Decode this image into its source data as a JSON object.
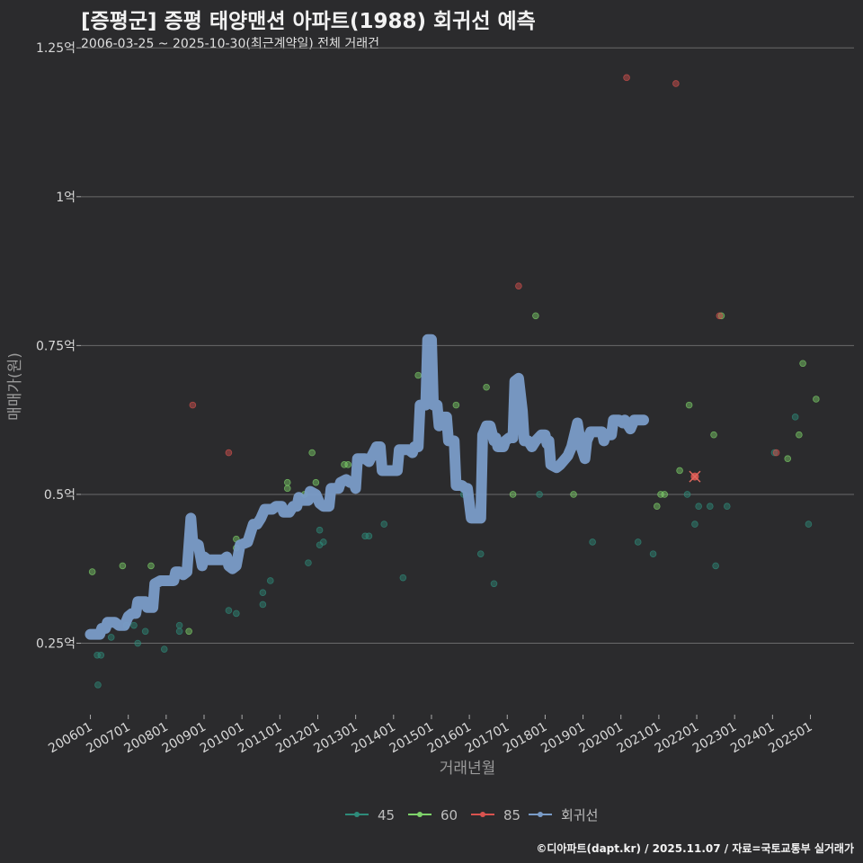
{
  "title": "[증평군] 증평 태양맨션 아파트(1988) 회귀선 예측",
  "subtitle": "2006-03-25 ~ 2025-10-30(최근계약일) 전체 거래건",
  "footer": "©디아파트(dapt.kr) / 2025.11.07 / 자료=국토교통부 실거래가",
  "chart_data": {
    "type": "scatter",
    "xlabel": "거래년월",
    "ylabel": "매매가(원)",
    "xlim": [
      2005.75,
      2026.15
    ],
    "ylim": [
      0.13,
      1.27
    ],
    "x_ticks": [
      {
        "value": 2006,
        "label": "200601"
      },
      {
        "value": 2007,
        "label": "200701"
      },
      {
        "value": 2008,
        "label": "200801"
      },
      {
        "value": 2009,
        "label": "200901"
      },
      {
        "value": 2010,
        "label": "201001"
      },
      {
        "value": 2011,
        "label": "201101"
      },
      {
        "value": 2012,
        "label": "201201"
      },
      {
        "value": 2013,
        "label": "201301"
      },
      {
        "value": 2014,
        "label": "201401"
      },
      {
        "value": 2015,
        "label": "201501"
      },
      {
        "value": 2016,
        "label": "201601"
      },
      {
        "value": 2017,
        "label": "201701"
      },
      {
        "value": 2018,
        "label": "201801"
      },
      {
        "value": 2019,
        "label": "201901"
      },
      {
        "value": 2020,
        "label": "202001"
      },
      {
        "value": 2021,
        "label": "202101"
      },
      {
        "value": 2022,
        "label": "202201"
      },
      {
        "value": 2023,
        "label": "202301"
      },
      {
        "value": 2024,
        "label": "202401"
      },
      {
        "value": 2025,
        "label": "202501"
      }
    ],
    "y_ticks": [
      {
        "value": 0.25,
        "label": "0.25억"
      },
      {
        "value": 0.5,
        "label": "0.5억"
      },
      {
        "value": 0.75,
        "label": "0.75억"
      },
      {
        "value": 1.0,
        "label": "1억"
      },
      {
        "value": 1.25,
        "label": "1.25억"
      }
    ],
    "legend": [
      {
        "name": "45",
        "color": "#2e8b7a"
      },
      {
        "name": "60",
        "color": "#7ed36a"
      },
      {
        "name": "85",
        "color": "#d9534f"
      },
      {
        "name": "회귀선",
        "color": "#7a9cc8"
      }
    ],
    "series": [
      {
        "name": "45",
        "color": "#2e8b7a",
        "points": [
          [
            2006.18,
            0.23
          ],
          [
            2006.28,
            0.23
          ],
          [
            2006.2,
            0.18
          ],
          [
            2006.55,
            0.26
          ],
          [
            2006.95,
            0.28
          ],
          [
            2007.15,
            0.28
          ],
          [
            2007.25,
            0.25
          ],
          [
            2007.45,
            0.27
          ],
          [
            2007.95,
            0.24
          ],
          [
            2008.35,
            0.27
          ],
          [
            2008.35,
            0.28
          ],
          [
            2009.65,
            0.305
          ],
          [
            2009.85,
            0.3
          ],
          [
            2010.55,
            0.315
          ],
          [
            2010.55,
            0.335
          ],
          [
            2010.75,
            0.355
          ],
          [
            2011.75,
            0.385
          ],
          [
            2012.05,
            0.415
          ],
          [
            2012.15,
            0.42
          ],
          [
            2012.05,
            0.44
          ],
          [
            2013.25,
            0.43
          ],
          [
            2013.35,
            0.43
          ],
          [
            2013.75,
            0.45
          ],
          [
            2014.25,
            0.36
          ],
          [
            2015.85,
            0.5
          ],
          [
            2016.3,
            0.4
          ],
          [
            2016.65,
            0.35
          ],
          [
            2017.85,
            0.5
          ],
          [
            2019.25,
            0.42
          ],
          [
            2020.45,
            0.42
          ],
          [
            2020.85,
            0.4
          ],
          [
            2021.75,
            0.5
          ],
          [
            2021.95,
            0.45
          ],
          [
            2022.05,
            0.48
          ],
          [
            2022.35,
            0.48
          ],
          [
            2022.5,
            0.38
          ],
          [
            2022.8,
            0.48
          ],
          [
            2024.95,
            0.45
          ],
          [
            2024.6,
            0.63
          ],
          [
            2024.05,
            0.57
          ]
        ]
      },
      {
        "name": "60",
        "color": "#7ed36a",
        "points": [
          [
            2006.05,
            0.37
          ],
          [
            2006.85,
            0.38
          ],
          [
            2007.6,
            0.38
          ],
          [
            2008.6,
            0.27
          ],
          [
            2009.85,
            0.41
          ],
          [
            2009.85,
            0.425
          ],
          [
            2011.2,
            0.51
          ],
          [
            2011.2,
            0.52
          ],
          [
            2011.65,
            0.5
          ],
          [
            2011.85,
            0.57
          ],
          [
            2011.95,
            0.52
          ],
          [
            2012.7,
            0.55
          ],
          [
            2012.8,
            0.55
          ],
          [
            2014.65,
            0.7
          ],
          [
            2015.65,
            0.65
          ],
          [
            2016.45,
            0.68
          ],
          [
            2017.15,
            0.5
          ],
          [
            2017.75,
            0.8
          ],
          [
            2018.75,
            0.5
          ],
          [
            2020.95,
            0.48
          ],
          [
            2021.05,
            0.5
          ],
          [
            2021.15,
            0.5
          ],
          [
            2021.55,
            0.54
          ],
          [
            2021.8,
            0.65
          ],
          [
            2022.45,
            0.6
          ],
          [
            2022.65,
            0.8
          ],
          [
            2024.4,
            0.56
          ],
          [
            2024.7,
            0.6
          ],
          [
            2024.8,
            0.72
          ],
          [
            2025.15,
            0.66
          ]
        ]
      },
      {
        "name": "85",
        "color": "#d9534f",
        "points": [
          [
            2008.7,
            0.65
          ],
          [
            2009.65,
            0.57
          ],
          [
            2017.3,
            0.85
          ],
          [
            2020.15,
            1.2
          ],
          [
            2021.45,
            1.19
          ],
          [
            2022.6,
            0.8
          ],
          [
            2021.95,
            0.53
          ],
          [
            2024.1,
            0.57
          ]
        ]
      }
    ],
    "regression": [
      [
        2006.0,
        0.265
      ],
      [
        2006.25,
        0.265
      ],
      [
        2006.3,
        0.275
      ],
      [
        2006.4,
        0.275
      ],
      [
        2006.45,
        0.285
      ],
      [
        2006.65,
        0.285
      ],
      [
        2006.75,
        0.28
      ],
      [
        2006.9,
        0.28
      ],
      [
        2007.0,
        0.295
      ],
      [
        2007.1,
        0.3
      ],
      [
        2007.2,
        0.3
      ],
      [
        2007.25,
        0.32
      ],
      [
        2007.45,
        0.32
      ],
      [
        2007.5,
        0.31
      ],
      [
        2007.65,
        0.31
      ],
      [
        2007.7,
        0.35
      ],
      [
        2007.85,
        0.355
      ],
      [
        2008.2,
        0.355
      ],
      [
        2008.25,
        0.37
      ],
      [
        2008.35,
        0.37
      ],
      [
        2008.45,
        0.365
      ],
      [
        2008.55,
        0.37
      ],
      [
        2008.65,
        0.46
      ],
      [
        2008.7,
        0.42
      ],
      [
        2008.85,
        0.415
      ],
      [
        2008.95,
        0.38
      ],
      [
        2009.0,
        0.395
      ],
      [
        2009.1,
        0.39
      ],
      [
        2009.3,
        0.39
      ],
      [
        2009.5,
        0.39
      ],
      [
        2009.6,
        0.395
      ],
      [
        2009.65,
        0.38
      ],
      [
        2009.75,
        0.375
      ],
      [
        2009.85,
        0.38
      ],
      [
        2009.95,
        0.415
      ],
      [
        2010.15,
        0.42
      ],
      [
        2010.3,
        0.45
      ],
      [
        2010.4,
        0.45
      ],
      [
        2010.5,
        0.46
      ],
      [
        2010.6,
        0.475
      ],
      [
        2010.8,
        0.475
      ],
      [
        2010.9,
        0.48
      ],
      [
        2011.05,
        0.48
      ],
      [
        2011.1,
        0.47
      ],
      [
        2011.25,
        0.47
      ],
      [
        2011.35,
        0.48
      ],
      [
        2011.45,
        0.48
      ],
      [
        2011.5,
        0.495
      ],
      [
        2011.6,
        0.49
      ],
      [
        2011.75,
        0.49
      ],
      [
        2011.8,
        0.505
      ],
      [
        2011.95,
        0.5
      ],
      [
        2012.05,
        0.485
      ],
      [
        2012.15,
        0.48
      ],
      [
        2012.3,
        0.48
      ],
      [
        2012.35,
        0.51
      ],
      [
        2012.55,
        0.51
      ],
      [
        2012.6,
        0.52
      ],
      [
        2012.75,
        0.525
      ],
      [
        2012.85,
        0.52
      ],
      [
        2012.95,
        0.52
      ],
      [
        2013.0,
        0.51
      ],
      [
        2013.05,
        0.56
      ],
      [
        2013.25,
        0.56
      ],
      [
        2013.35,
        0.555
      ],
      [
        2013.55,
        0.58
      ],
      [
        2013.65,
        0.58
      ],
      [
        2013.7,
        0.54
      ],
      [
        2014.1,
        0.54
      ],
      [
        2014.15,
        0.575
      ],
      [
        2014.4,
        0.575
      ],
      [
        2014.5,
        0.57
      ],
      [
        2014.55,
        0.58
      ],
      [
        2014.65,
        0.58
      ],
      [
        2014.7,
        0.65
      ],
      [
        2014.85,
        0.65
      ],
      [
        2014.9,
        0.76
      ],
      [
        2015.0,
        0.76
      ],
      [
        2015.05,
        0.65
      ],
      [
        2015.15,
        0.65
      ],
      [
        2015.2,
        0.615
      ],
      [
        2015.25,
        0.63
      ],
      [
        2015.4,
        0.63
      ],
      [
        2015.45,
        0.59
      ],
      [
        2015.6,
        0.59
      ],
      [
        2015.65,
        0.515
      ],
      [
        2015.8,
        0.515
      ],
      [
        2015.9,
        0.51
      ],
      [
        2015.95,
        0.51
      ],
      [
        2016.05,
        0.46
      ],
      [
        2016.3,
        0.46
      ],
      [
        2016.35,
        0.6
      ],
      [
        2016.45,
        0.615
      ],
      [
        2016.55,
        0.615
      ],
      [
        2016.65,
        0.59
      ],
      [
        2016.7,
        0.595
      ],
      [
        2016.75,
        0.58
      ],
      [
        2016.9,
        0.58
      ],
      [
        2016.95,
        0.59
      ],
      [
        2017.05,
        0.595
      ],
      [
        2017.15,
        0.595
      ],
      [
        2017.2,
        0.69
      ],
      [
        2017.3,
        0.695
      ],
      [
        2017.4,
        0.64
      ],
      [
        2017.45,
        0.59
      ],
      [
        2017.55,
        0.59
      ],
      [
        2017.65,
        0.58
      ],
      [
        2017.75,
        0.59
      ],
      [
        2017.9,
        0.6
      ],
      [
        2018.0,
        0.6
      ],
      [
        2018.05,
        0.585
      ],
      [
        2018.1,
        0.59
      ],
      [
        2018.15,
        0.55
      ],
      [
        2018.3,
        0.545
      ],
      [
        2018.4,
        0.55
      ],
      [
        2018.6,
        0.565
      ],
      [
        2018.7,
        0.58
      ],
      [
        2018.85,
        0.62
      ],
      [
        2018.95,
        0.58
      ],
      [
        2019.05,
        0.56
      ],
      [
        2019.1,
        0.59
      ],
      [
        2019.2,
        0.605
      ],
      [
        2019.5,
        0.605
      ],
      [
        2019.55,
        0.59
      ],
      [
        2019.6,
        0.6
      ],
      [
        2019.75,
        0.6
      ],
      [
        2019.8,
        0.625
      ],
      [
        2019.95,
        0.625
      ],
      [
        2020.05,
        0.62
      ],
      [
        2020.1,
        0.625
      ],
      [
        2020.25,
        0.61
      ],
      [
        2020.35,
        0.625
      ],
      [
        2020.6,
        0.625
      ]
    ]
  }
}
